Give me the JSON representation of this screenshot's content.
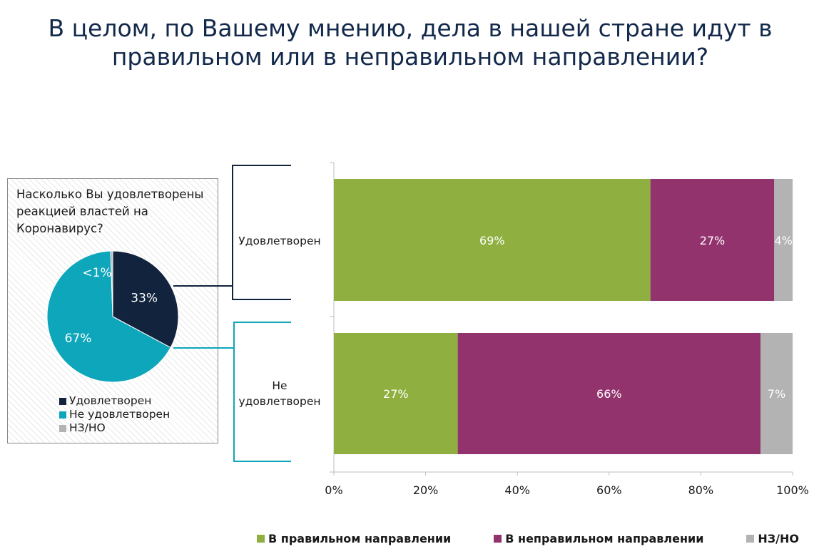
{
  "title": "В целом, по Вашему мнению, дела в нашей стране идут в правильном или в неправильном направлении?",
  "colors": {
    "green": "#8fb040",
    "purple": "#93336e",
    "gray": "#b3b3b3",
    "navy": "#12233d",
    "teal": "#0ea6bb"
  },
  "pie": {
    "question": "Насколько Вы удовлетворены реакцией властей на Коронавирус?",
    "legend": [
      "Удовлетворен",
      "Не удовлетворен",
      "НЗ/НО"
    ]
  },
  "chart_data": [
    {
      "type": "pie",
      "labels": [
        "Удовлетворен",
        "Не удовлетворен",
        "НЗ/НО"
      ],
      "values": [
        33,
        67,
        0.5
      ],
      "value_labels": [
        "33%",
        "67%",
        "<1%"
      ]
    },
    {
      "type": "bar",
      "orientation": "horizontal",
      "stacked": true,
      "categories": [
        "Удовлетворен",
        "Не удовлетворен"
      ],
      "series": [
        {
          "name": "В правильном направлении",
          "values": [
            69,
            27
          ],
          "labels": [
            "69%",
            "27%"
          ]
        },
        {
          "name": "В неправильном направлении",
          "values": [
            27,
            66
          ],
          "labels": [
            "27%",
            "66%"
          ]
        },
        {
          "name": "НЗ/НО",
          "values": [
            4,
            7
          ],
          "labels": [
            "4%",
            "7%"
          ]
        }
      ],
      "xlim": [
        0,
        100
      ],
      "xticks": [
        "0%",
        "20%",
        "40%",
        "60%",
        "80%",
        "100%"
      ],
      "legend_position": "bottom"
    }
  ]
}
